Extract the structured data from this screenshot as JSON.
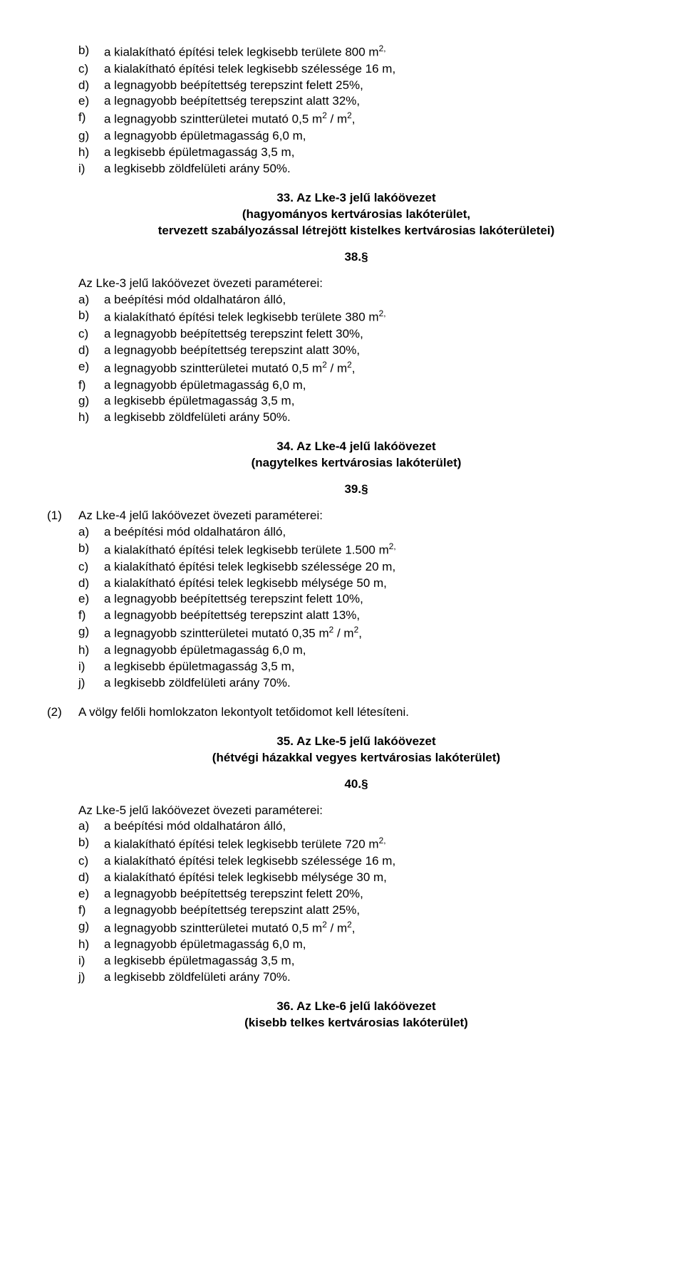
{
  "block1": {
    "items": [
      {
        "m": "b)",
        "t": "a kialakítható építési telek legkisebb területe 800 m",
        "sup": "2,"
      },
      {
        "m": "c)",
        "t": "a kialakítható építési telek legkisebb szélessége 16 m,"
      },
      {
        "m": "d)",
        "t": "a legnagyobb beépítettség terepszint felett 25%,"
      },
      {
        "m": "e)",
        "t": "a legnagyobb beépítettség terepszint alatt 32%,"
      },
      {
        "m": "f)",
        "t": "a legnagyobb szintterületei mutató 0,5 m",
        "sup": "2",
        "post": " / m",
        "sup2": "2",
        "post2": ","
      },
      {
        "m": "g)",
        "t": "a legnagyobb épületmagasság 6,0 m,"
      },
      {
        "m": "h)",
        "t": "a legkisebb épületmagasság 3,5 m,"
      },
      {
        "m": "i)",
        "t": "a legkisebb zöldfelületi arány 50%."
      }
    ]
  },
  "h33": {
    "l1": "33. Az Lke-3 jelű lakóövezet",
    "l2": "(hagyományos kertvárosias lakóterület,",
    "l3": "tervezett szabályozással létrejött kistelkes kertvárosias lakóterületei)"
  },
  "s38": "38.§",
  "block2": {
    "intro": "Az Lke-3 jelű lakóövezet övezeti paraméterei:",
    "items": [
      {
        "m": "a)",
        "t": "a beépítési mód oldalhatáron álló,"
      },
      {
        "m": "b)",
        "t": "a kialakítható építési telek legkisebb területe 380 m",
        "sup": "2,"
      },
      {
        "m": "c)",
        "t": "a legnagyobb beépítettség terepszint felett 30%,"
      },
      {
        "m": "d)",
        "t": "a legnagyobb beépítettség terepszint alatt 30%,"
      },
      {
        "m": "e)",
        "t": "a legnagyobb szintterületei mutató 0,5 m",
        "sup": "2",
        "post": " / m",
        "sup2": "2",
        "post2": ","
      },
      {
        "m": "f)",
        "t": "a legnagyobb épületmagasság 6,0 m,"
      },
      {
        "m": "g)",
        "t": "a legkisebb épületmagasság 3,5 m,"
      },
      {
        "m": "h)",
        "t": "a legkisebb zöldfelületi arány 50%."
      }
    ]
  },
  "h34": {
    "l1": "34. Az Lke-4 jelű lakóövezet",
    "l2": "(nagytelkes kertvárosias lakóterület)"
  },
  "s39": "39.§",
  "block3": {
    "num": "(1)",
    "intro": "Az Lke-4 jelű lakóövezet övezeti paraméterei:",
    "items": [
      {
        "m": "a)",
        "t": "a beépítési mód oldalhatáron álló,"
      },
      {
        "m": "b)",
        "t": "a kialakítható építési telek legkisebb területe 1.500 m",
        "sup": "2,"
      },
      {
        "m": "c)",
        "t": "a kialakítható építési telek legkisebb szélessége 20 m,"
      },
      {
        "m": "d)",
        "t": "a kialakítható építési telek legkisebb mélysége 50 m,"
      },
      {
        "m": "e)",
        "t": "a legnagyobb beépítettség terepszint felett 10%,"
      },
      {
        "m": "f)",
        "t": "a legnagyobb beépítettség terepszint alatt 13%,"
      },
      {
        "m": "g)",
        "t": "a legnagyobb szintterületei mutató 0,35 m",
        "sup": "2",
        "post": " / m",
        "sup2": "2",
        "post2": ","
      },
      {
        "m": "h)",
        "t": "a legnagyobb épületmagasság 6,0 m,"
      },
      {
        "m": "i)",
        "t": "a legkisebb épületmagasság 3,5 m,"
      },
      {
        "m": "j)",
        "t": "a legkisebb zöldfelületi arány 70%."
      }
    ]
  },
  "block3b": {
    "num": "(2)",
    "t": "A völgy felőli homlokzaton lekontyolt tetőidomot kell létesíteni."
  },
  "h35": {
    "l1": "35. Az Lke-5 jelű lakóövezet",
    "l2": "(hétvégi házakkal vegyes kertvárosias lakóterület)"
  },
  "s40": "40.§",
  "block4": {
    "intro": "Az Lke-5 jelű lakóövezet övezeti paraméterei:",
    "items": [
      {
        "m": "a)",
        "t": "a beépítési mód oldalhatáron álló,"
      },
      {
        "m": "b)",
        "t": "a kialakítható építési telek legkisebb területe 720 m",
        "sup": "2,"
      },
      {
        "m": "c)",
        "t": "a kialakítható építési telek legkisebb szélessége 16 m,"
      },
      {
        "m": "d)",
        "t": "a kialakítható építési telek legkisebb mélysége 30 m,"
      },
      {
        "m": "e)",
        "t": "a legnagyobb beépítettség terepszint felett 20%,"
      },
      {
        "m": "f)",
        "t": "a legnagyobb beépítettség terepszint alatt 25%,"
      },
      {
        "m": "g)",
        "t": "a legnagyobb szintterületei mutató 0,5 m",
        "sup": "2",
        "post": " / m",
        "sup2": "2",
        "post2": ","
      },
      {
        "m": "h)",
        "t": "a legnagyobb épületmagasság 6,0 m,"
      },
      {
        "m": "i)",
        "t": "a legkisebb épületmagasság 3,5 m,"
      },
      {
        "m": "j)",
        "t": "a legkisebb zöldfelületi arány 70%."
      }
    ]
  },
  "h36": {
    "l1": "36. Az Lke-6 jelű lakóövezet",
    "l2": "(kisebb telkes kertvárosias lakóterület)"
  }
}
